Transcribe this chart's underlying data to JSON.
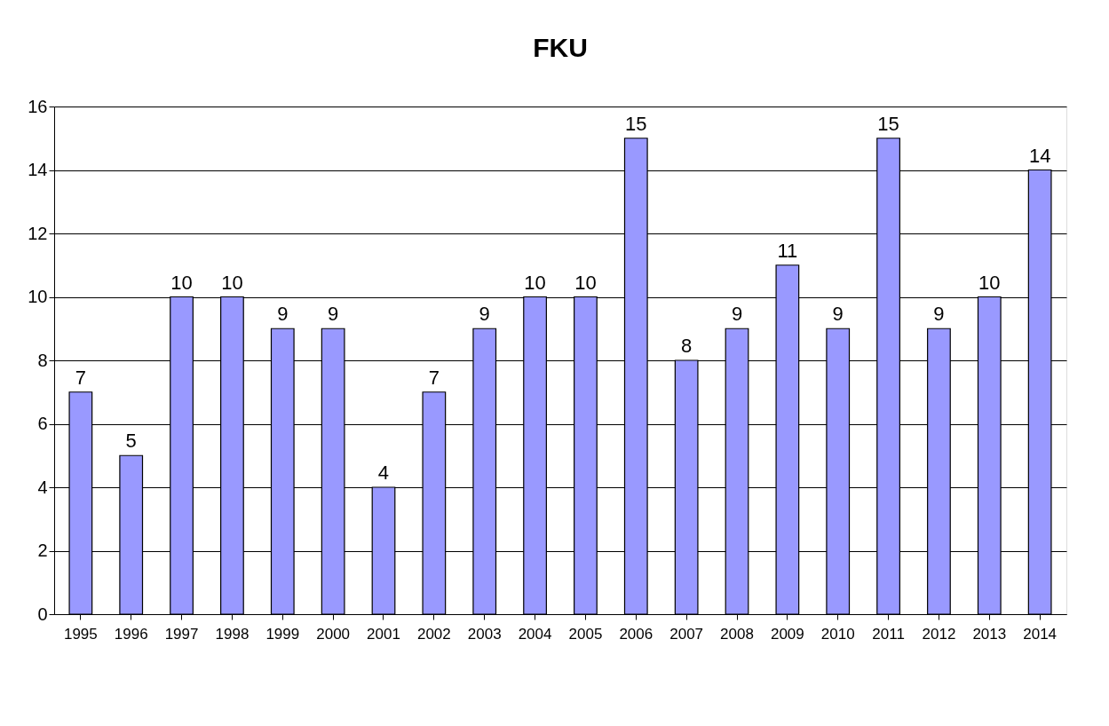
{
  "chart_data": {
    "type": "bar",
    "title": "FKU",
    "categories": [
      "1995",
      "1996",
      "1997",
      "1998",
      "1999",
      "2000",
      "2001",
      "2002",
      "2003",
      "2004",
      "2005",
      "2006",
      "2007",
      "2008",
      "2009",
      "2010",
      "2011",
      "2012",
      "2013",
      "2014"
    ],
    "values": [
      7,
      5,
      10,
      10,
      9,
      9,
      4,
      7,
      9,
      10,
      10,
      15,
      8,
      9,
      11,
      9,
      15,
      9,
      10,
      14
    ],
    "color": "#9999ff",
    "ylim": [
      0,
      16
    ],
    "yticks": [
      0,
      2,
      4,
      6,
      8,
      10,
      12,
      14,
      16
    ],
    "grid": "y",
    "data_labels": true
  }
}
